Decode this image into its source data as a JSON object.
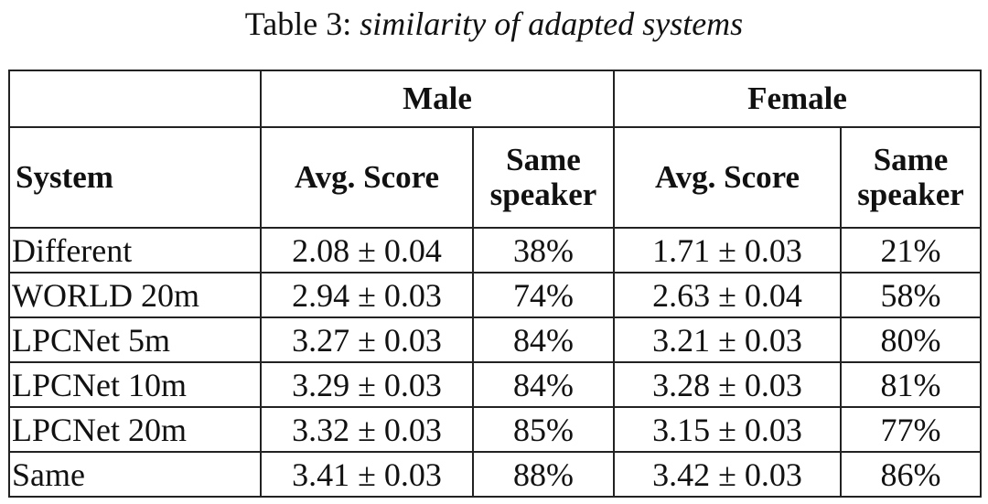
{
  "caption": {
    "label": "Table 3:",
    "description": "similarity of adapted systems"
  },
  "table": {
    "group_headers": [
      "Male",
      "Female"
    ],
    "column_headers": {
      "system": "System",
      "avg_score": "Avg. Score",
      "same_speaker_line1": "Same",
      "same_speaker_line2": "speaker"
    },
    "rows": [
      {
        "system": "Different",
        "male_avg": "2.08 ± 0.04",
        "male_same": "38%",
        "female_avg": "1.71 ± 0.03",
        "female_same": "21%"
      },
      {
        "system": "WORLD 20m",
        "male_avg": "2.94 ± 0.03",
        "male_same": "74%",
        "female_avg": "2.63 ± 0.04",
        "female_same": "58%"
      },
      {
        "system": "LPCNet 5m",
        "male_avg": "3.27 ± 0.03",
        "male_same": "84%",
        "female_avg": "3.21 ± 0.03",
        "female_same": "80%"
      },
      {
        "system": "LPCNet 10m",
        "male_avg": "3.29 ± 0.03",
        "male_same": "84%",
        "female_avg": "3.28 ± 0.03",
        "female_same": "81%"
      },
      {
        "system": "LPCNet 20m",
        "male_avg": "3.32 ± 0.03",
        "male_same": "85%",
        "female_avg": "3.15 ± 0.03",
        "female_same": "77%"
      },
      {
        "system": "Same",
        "male_avg": "3.41 ± 0.03",
        "male_same": "88%",
        "female_avg": "3.42 ± 0.03",
        "female_same": "86%"
      }
    ]
  }
}
